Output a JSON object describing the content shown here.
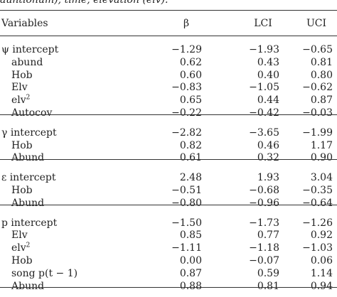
{
  "caption": "auntionum), time, elevation (elv).",
  "table": {
    "header": [
      "Variables",
      "β",
      "LCI",
      "UCI"
    ],
    "groups": [
      {
        "rows": [
          {
            "label": "ψ intercept",
            "values": [
              "−1.29",
              "−1.93",
              "−0.65"
            ]
          },
          {
            "label": "abund",
            "values": [
              "0.62",
              "0.43",
              "0.81"
            ]
          },
          {
            "label": "Hob",
            "values": [
              "0.60",
              "0.40",
              "0.80"
            ]
          },
          {
            "label": "Elv",
            "values": [
              "−0.83",
              "−1.05",
              "−0.62"
            ]
          },
          {
            "label": "elv",
            "sup": "2",
            "values": [
              "0.65",
              "0.44",
              "0.87"
            ]
          },
          {
            "label": "Autocov",
            "values": [
              "−0.22",
              "−0.42",
              "−0.03"
            ]
          }
        ]
      },
      {
        "rows": [
          {
            "label": "γ intercept",
            "values": [
              "−2.82",
              "−3.65",
              "−1.99"
            ]
          },
          {
            "label": "Hob",
            "values": [
              "0.82",
              "0.46",
              "1.17"
            ]
          },
          {
            "label": "Abund",
            "values": [
              "0.61",
              "0.32",
              "0.90"
            ]
          }
        ]
      },
      {
        "rows": [
          {
            "label": "ε intercept",
            "values": [
              "2.48",
              "1.93",
              "3.04"
            ]
          },
          {
            "label": "Hob",
            "values": [
              "−0.51",
              "−0.68",
              "−0.35"
            ]
          },
          {
            "label": "Abund",
            "values": [
              "−0.80",
              "−0.96",
              "−0.64"
            ]
          }
        ]
      },
      {
        "rows": [
          {
            "label": "p intercept",
            "values": [
              "−1.50",
              "−1.73",
              "−1.26"
            ]
          },
          {
            "label": "Elv",
            "values": [
              "0.85",
              "0.77",
              "0.92"
            ]
          },
          {
            "label": "elv",
            "sup": "2",
            "values": [
              "−1.11",
              "−1.18",
              "−1.03"
            ]
          },
          {
            "label": "Hob",
            "values": [
              "0.00",
              "−0.07",
              "0.06"
            ]
          },
          {
            "label": "song p(t − 1)",
            "values": [
              "0.87",
              "0.59",
              "1.14"
            ]
          },
          {
            "label": "Abund",
            "values": [
              "0.88",
              "0.81",
              "0.94"
            ]
          }
        ]
      }
    ]
  }
}
